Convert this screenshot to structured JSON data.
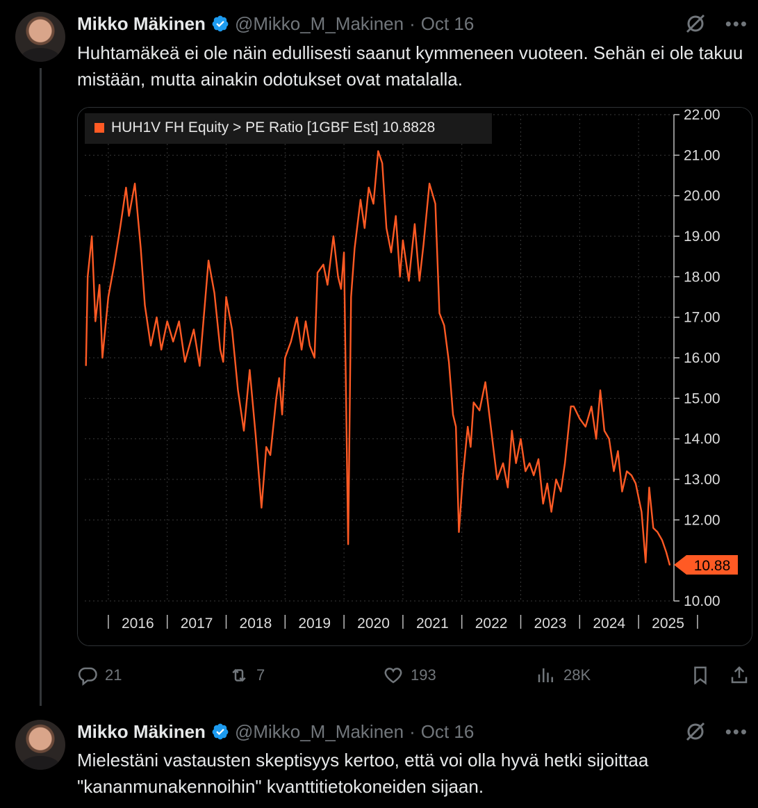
{
  "post1": {
    "author_name": "Mikko Mäkinen",
    "handle": "@Mikko_M_Makinen",
    "separator": "·",
    "date": "Oct 16",
    "text": "Huhtamäkeä ei ole näin edullisesti saanut kymmeneen vuoteen. Sehän ei ole takuu mistään, mutta ainakin odotukset ovat matalalla.",
    "stats": {
      "replies": "21",
      "reposts": "7",
      "likes": "193",
      "views": "28K"
    }
  },
  "post2": {
    "author_name": "Mikko Mäkinen",
    "handle": "@Mikko_M_Makinen",
    "separator": "·",
    "date": "Oct 16",
    "text": "Mielestäni vastausten skeptisyys kertoo, että voi olla hyvä hetki sijoittaa \"kananmunakennoihin\" kvanttitietokoneiden sijaan."
  },
  "icons": [
    "grok-icon",
    "more-icon",
    "verified-badge-icon",
    "reply-icon",
    "repost-icon",
    "like-icon",
    "views-icon",
    "bookmark-icon",
    "share-icon"
  ],
  "colors": {
    "background": "#000000",
    "text": "#e7e9ea",
    "muted": "#71767b",
    "verified": "#1d9bf0",
    "chart_line": "#ff5a24"
  },
  "chart_data": {
    "type": "line",
    "legend": "HUH1V FH Equity > PE Ratio [1GBF Est]  10.8828",
    "last_value_label": "10.88",
    "last_value": 10.88,
    "x_tick_labels": [
      "2016",
      "2017",
      "2018",
      "2019",
      "2020",
      "2021",
      "2022",
      "2023",
      "2024",
      "2025"
    ],
    "y_tick_labels": [
      "22.00",
      "21.00",
      "20.00",
      "19.00",
      "18.00",
      "17.00",
      "16.00",
      "15.00",
      "14.00",
      "13.00",
      "12.00",
      "10.00"
    ],
    "ylim": [
      10,
      22
    ],
    "xlim": [
      2015.6,
      2025.6
    ],
    "grid": true,
    "series": [
      {
        "values": [
          [
            2015.62,
            15.8
          ],
          [
            2015.65,
            18.0
          ],
          [
            2015.72,
            19.0
          ],
          [
            2015.78,
            16.9
          ],
          [
            2015.85,
            17.8
          ],
          [
            2015.9,
            16.0
          ],
          [
            2016.0,
            17.5
          ],
          [
            2016.1,
            18.3
          ],
          [
            2016.2,
            19.2
          ],
          [
            2016.3,
            20.2
          ],
          [
            2016.35,
            19.5
          ],
          [
            2016.45,
            20.3
          ],
          [
            2016.55,
            18.7
          ],
          [
            2016.62,
            17.3
          ],
          [
            2016.72,
            16.3
          ],
          [
            2016.82,
            17.0
          ],
          [
            2016.9,
            16.2
          ],
          [
            2017.0,
            16.9
          ],
          [
            2017.1,
            16.4
          ],
          [
            2017.2,
            16.9
          ],
          [
            2017.3,
            15.9
          ],
          [
            2017.45,
            16.7
          ],
          [
            2017.55,
            15.8
          ],
          [
            2017.7,
            18.4
          ],
          [
            2017.8,
            17.6
          ],
          [
            2017.9,
            16.2
          ],
          [
            2017.95,
            15.9
          ],
          [
            2018.0,
            17.5
          ],
          [
            2018.1,
            16.7
          ],
          [
            2018.2,
            15.2
          ],
          [
            2018.3,
            14.2
          ],
          [
            2018.4,
            15.7
          ],
          [
            2018.5,
            14.1
          ],
          [
            2018.6,
            12.3
          ],
          [
            2018.68,
            13.8
          ],
          [
            2018.75,
            13.6
          ],
          [
            2018.85,
            15.0
          ],
          [
            2018.9,
            15.5
          ],
          [
            2018.95,
            14.6
          ],
          [
            2019.0,
            16.0
          ],
          [
            2019.1,
            16.4
          ],
          [
            2019.2,
            17.0
          ],
          [
            2019.28,
            16.2
          ],
          [
            2019.35,
            16.9
          ],
          [
            2019.42,
            16.3
          ],
          [
            2019.5,
            16.0
          ],
          [
            2019.55,
            18.1
          ],
          [
            2019.65,
            18.3
          ],
          [
            2019.72,
            17.8
          ],
          [
            2019.82,
            19.0
          ],
          [
            2019.9,
            18.0
          ],
          [
            2019.95,
            17.7
          ],
          [
            2020.0,
            18.6
          ],
          [
            2020.07,
            11.4
          ],
          [
            2020.12,
            17.5
          ],
          [
            2020.18,
            18.7
          ],
          [
            2020.28,
            19.9
          ],
          [
            2020.35,
            19.2
          ],
          [
            2020.42,
            20.2
          ],
          [
            2020.5,
            19.8
          ],
          [
            2020.58,
            21.1
          ],
          [
            2020.65,
            20.8
          ],
          [
            2020.72,
            19.2
          ],
          [
            2020.8,
            18.6
          ],
          [
            2020.88,
            19.5
          ],
          [
            2020.95,
            18.0
          ],
          [
            2021.0,
            18.9
          ],
          [
            2021.1,
            17.9
          ],
          [
            2021.2,
            19.3
          ],
          [
            2021.28,
            17.9
          ],
          [
            2021.35,
            18.8
          ],
          [
            2021.45,
            20.3
          ],
          [
            2021.55,
            19.8
          ],
          [
            2021.62,
            17.1
          ],
          [
            2021.7,
            16.8
          ],
          [
            2021.78,
            15.9
          ],
          [
            2021.85,
            14.6
          ],
          [
            2021.9,
            14.3
          ],
          [
            2021.95,
            11.7
          ],
          [
            2022.02,
            13.1
          ],
          [
            2022.1,
            14.3
          ],
          [
            2022.15,
            13.8
          ],
          [
            2022.2,
            14.9
          ],
          [
            2022.3,
            14.7
          ],
          [
            2022.4,
            15.4
          ],
          [
            2022.5,
            14.2
          ],
          [
            2022.6,
            13.0
          ],
          [
            2022.7,
            13.4
          ],
          [
            2022.78,
            12.8
          ],
          [
            2022.85,
            14.2
          ],
          [
            2022.92,
            13.4
          ],
          [
            2023.0,
            14.0
          ],
          [
            2023.08,
            13.2
          ],
          [
            2023.15,
            13.4
          ],
          [
            2023.22,
            13.1
          ],
          [
            2023.3,
            13.5
          ],
          [
            2023.38,
            12.4
          ],
          [
            2023.45,
            12.9
          ],
          [
            2023.52,
            12.2
          ],
          [
            2023.6,
            13.0
          ],
          [
            2023.68,
            12.7
          ],
          [
            2023.75,
            13.4
          ],
          [
            2023.85,
            14.8
          ],
          [
            2023.9,
            14.8
          ],
          [
            2024.0,
            14.5
          ],
          [
            2024.1,
            14.3
          ],
          [
            2024.2,
            14.8
          ],
          [
            2024.28,
            14.0
          ],
          [
            2024.35,
            15.2
          ],
          [
            2024.42,
            14.2
          ],
          [
            2024.5,
            14.0
          ],
          [
            2024.58,
            13.2
          ],
          [
            2024.65,
            13.7
          ],
          [
            2024.72,
            12.7
          ],
          [
            2024.8,
            13.2
          ],
          [
            2024.88,
            13.1
          ],
          [
            2024.95,
            12.9
          ],
          [
            2025.05,
            12.2
          ],
          [
            2025.12,
            10.95
          ],
          [
            2025.18,
            12.8
          ],
          [
            2025.25,
            11.8
          ],
          [
            2025.32,
            11.7
          ],
          [
            2025.4,
            11.5
          ],
          [
            2025.47,
            11.2
          ],
          [
            2025.53,
            10.88
          ]
        ]
      }
    ]
  }
}
